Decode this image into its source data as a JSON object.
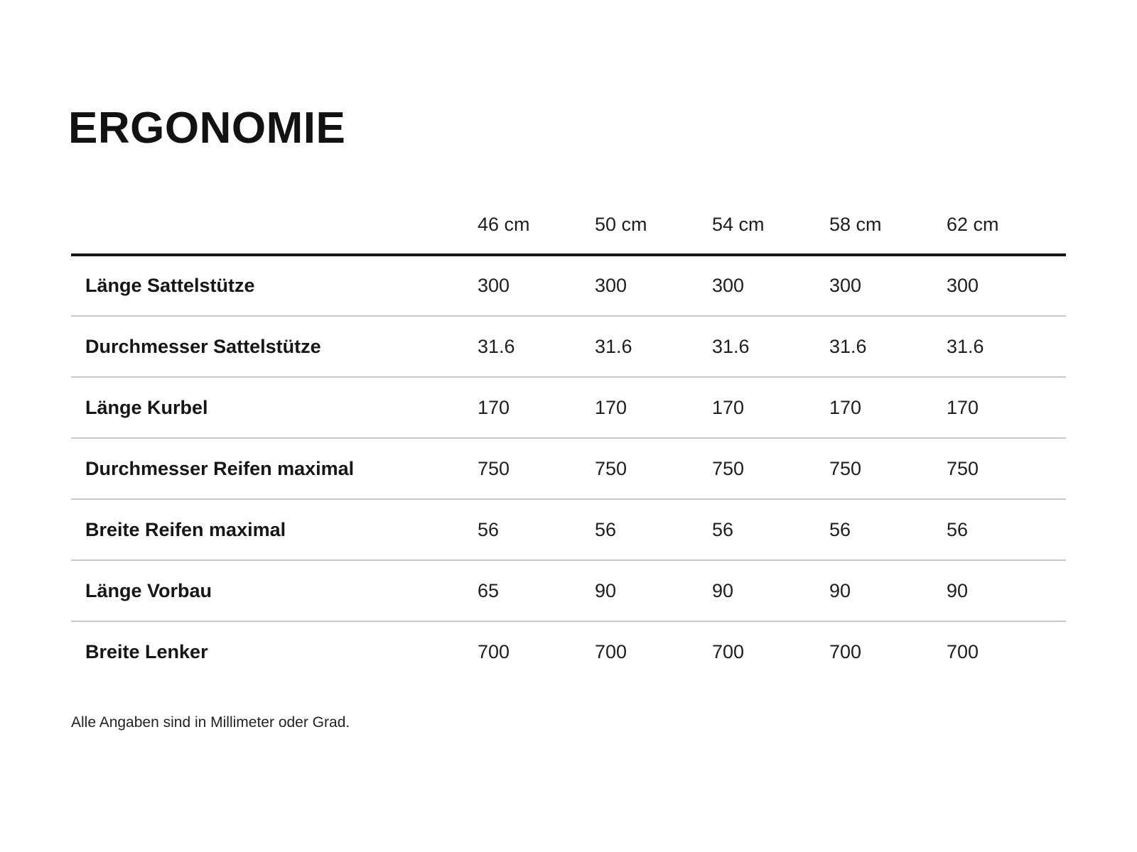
{
  "page": {
    "title": "ERGONOMIE",
    "footnote": "Alle Angaben sind in Millimeter oder Grad."
  },
  "table": {
    "columns": [
      "46 cm",
      "50 cm",
      "54 cm",
      "58 cm",
      "62 cm"
    ],
    "rows": [
      {
        "label": "Länge Sattelstütze",
        "values": [
          "300",
          "300",
          "300",
          "300",
          "300"
        ]
      },
      {
        "label": "Durchmesser Sattelstütze",
        "values": [
          "31.6",
          "31.6",
          "31.6",
          "31.6",
          "31.6"
        ]
      },
      {
        "label": "Länge Kurbel",
        "values": [
          "170",
          "170",
          "170",
          "170",
          "170"
        ]
      },
      {
        "label": "Durchmesser Reifen maximal",
        "values": [
          "750",
          "750",
          "750",
          "750",
          "750"
        ]
      },
      {
        "label": "Breite Reifen maximal",
        "values": [
          "56",
          "56",
          "56",
          "56",
          "56"
        ]
      },
      {
        "label": "Länge Vorbau",
        "values": [
          "65",
          "90",
          "90",
          "90",
          "90"
        ]
      },
      {
        "label": "Breite Lenker",
        "values": [
          "700",
          "700",
          "700",
          "700",
          "700"
        ]
      }
    ]
  },
  "colors": {
    "background": "#ffffff",
    "text": "#1e1e1e",
    "header_rule": "#161616",
    "divider": "#c6cacf"
  }
}
